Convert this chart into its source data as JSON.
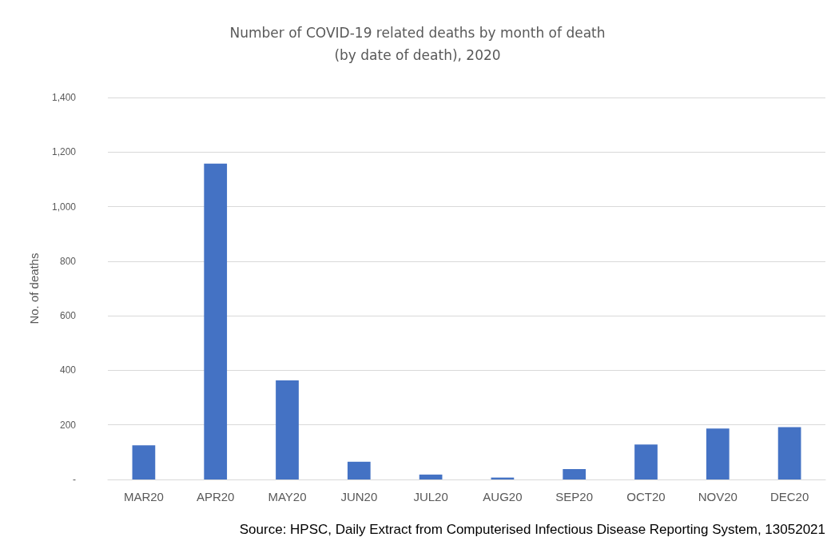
{
  "chart_data": {
    "type": "bar",
    "title": "Number of COVID-19 related deaths by month of death\n(by date of death), 2020",
    "ylabel": "No. of deaths",
    "categories": [
      "MAR20",
      "APR20",
      "MAY20",
      "JUN20",
      "JUL20",
      "AUG20",
      "SEP20",
      "OCT20",
      "NOV20",
      "DEC20"
    ],
    "values": [
      125,
      1158,
      363,
      65,
      18,
      7,
      38,
      128,
      187,
      192
    ],
    "color": "#4472c4",
    "ylim": [
      0,
      1400
    ],
    "yticks": [
      {
        "value": 0,
        "label": "-"
      },
      200,
      400,
      600,
      800,
      {
        "value": 1000,
        "label": "1,000"
      },
      {
        "value": 1200,
        "label": "1,200"
      },
      {
        "value": 1400,
        "label": "1,400"
      }
    ],
    "grid": "y",
    "annotations": [
      "Source: HPSC, Daily Extract from Computerised Infectious Disease Reporting System, 13052021"
    ]
  }
}
